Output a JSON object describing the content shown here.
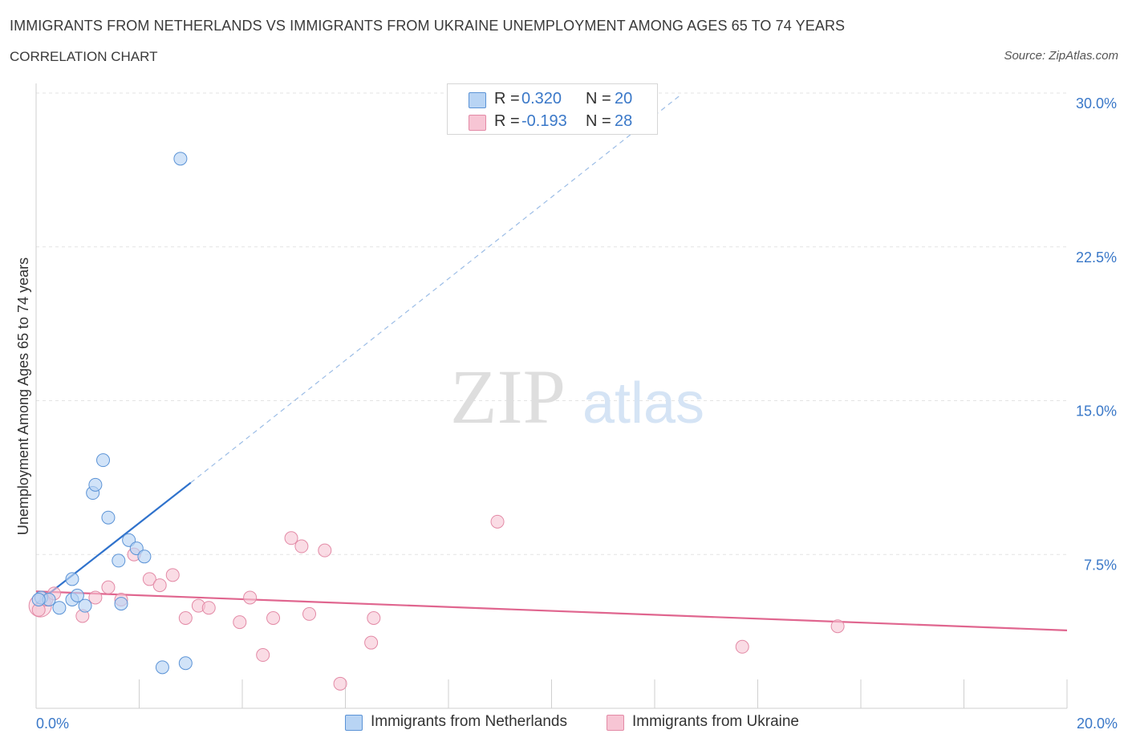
{
  "title": "IMMIGRANTS FROM NETHERLANDS VS IMMIGRANTS FROM UKRAINE UNEMPLOYMENT AMONG AGES 65 TO 74 YEARS",
  "subtitle": "CORRELATION CHART",
  "source": "Source: ZipAtlas.com",
  "watermark": {
    "zip": "ZIP",
    "atlas": "atlas"
  },
  "colors": {
    "netherlands_fill": "#b8d4f4",
    "netherlands_stroke": "#5b93d6",
    "netherlands_line": "#2f72cc",
    "ukraine_fill": "#f7c5d4",
    "ukraine_stroke": "#e38aa6",
    "ukraine_line": "#e0668f",
    "grid": "#e3e3e3",
    "tick_label": "#3a78c8"
  },
  "legend": {
    "r_label": "R =",
    "n_label": "N =",
    "rows": [
      {
        "series": "netherlands",
        "r": "0.320",
        "n": "20"
      },
      {
        "series": "ukraine",
        "r": "-0.193",
        "n": "28"
      }
    ]
  },
  "chart_data": {
    "type": "scatter",
    "title": "IMMIGRANTS FROM NETHERLANDS VS IMMIGRANTS FROM UKRAINE UNEMPLOYMENT AMONG AGES 65 TO 74 YEARS",
    "subtitle": "CORRELATION CHART",
    "xlabel": "",
    "ylabel": "Unemployment Among Ages 65 to 74 years",
    "xlim": [
      0,
      20
    ],
    "ylim": [
      0,
      30
    ],
    "x_tick_labels": [
      "0.0%",
      "20.0%"
    ],
    "y_ticks": [
      7.5,
      15.0,
      22.5,
      30.0
    ],
    "y_tick_labels": [
      "7.5%",
      "15.0%",
      "22.5%",
      "30.0%"
    ],
    "grid": true,
    "legend_position": "top-center",
    "series": [
      {
        "name": "Immigrants from Netherlands",
        "key": "netherlands",
        "r": 0.32,
        "n": 20,
        "points": [
          {
            "x": 0.1,
            "y": 5.4
          },
          {
            "x": 0.25,
            "y": 5.3
          },
          {
            "x": 0.45,
            "y": 4.9
          },
          {
            "x": 0.7,
            "y": 5.3
          },
          {
            "x": 0.7,
            "y": 6.3
          },
          {
            "x": 0.8,
            "y": 5.5
          },
          {
            "x": 0.95,
            "y": 5.0
          },
          {
            "x": 1.1,
            "y": 10.5
          },
          {
            "x": 1.15,
            "y": 10.9
          },
          {
            "x": 1.3,
            "y": 12.1
          },
          {
            "x": 1.4,
            "y": 9.3
          },
          {
            "x": 1.6,
            "y": 7.2
          },
          {
            "x": 1.65,
            "y": 5.1
          },
          {
            "x": 1.8,
            "y": 8.2
          },
          {
            "x": 1.95,
            "y": 7.8
          },
          {
            "x": 2.1,
            "y": 7.4
          },
          {
            "x": 2.45,
            "y": 2.0
          },
          {
            "x": 2.8,
            "y": 26.8
          },
          {
            "x": 2.9,
            "y": 2.2
          },
          {
            "x": 0.05,
            "y": 5.3
          }
        ],
        "trend": {
          "x0": 0.0,
          "y0": 5.1,
          "x1": 3.0,
          "y1": 11.0
        },
        "trend_extension": {
          "x0": 3.0,
          "y0": 11.0,
          "x1": 12.5,
          "y1": 29.9
        }
      },
      {
        "name": "Immigrants from Ukraine",
        "key": "ukraine",
        "r": -0.193,
        "n": 28,
        "points": [
          {
            "x": 0.05,
            "y": 4.8
          },
          {
            "x": 0.2,
            "y": 5.3
          },
          {
            "x": 0.35,
            "y": 5.6
          },
          {
            "x": 0.9,
            "y": 4.5
          },
          {
            "x": 1.15,
            "y": 5.4
          },
          {
            "x": 1.4,
            "y": 5.9
          },
          {
            "x": 1.65,
            "y": 5.3
          },
          {
            "x": 1.9,
            "y": 7.5
          },
          {
            "x": 2.2,
            "y": 6.3
          },
          {
            "x": 2.4,
            "y": 6.0
          },
          {
            "x": 2.65,
            "y": 6.5
          },
          {
            "x": 2.9,
            "y": 4.4
          },
          {
            "x": 3.15,
            "y": 5.0
          },
          {
            "x": 3.35,
            "y": 4.9
          },
          {
            "x": 3.95,
            "y": 4.2
          },
          {
            "x": 4.15,
            "y": 5.4
          },
          {
            "x": 4.4,
            "y": 2.6
          },
          {
            "x": 4.6,
            "y": 4.4
          },
          {
            "x": 4.95,
            "y": 8.3
          },
          {
            "x": 5.15,
            "y": 7.9
          },
          {
            "x": 5.3,
            "y": 4.6
          },
          {
            "x": 5.6,
            "y": 7.7
          },
          {
            "x": 5.9,
            "y": 1.2
          },
          {
            "x": 6.5,
            "y": 3.2
          },
          {
            "x": 6.55,
            "y": 4.4
          },
          {
            "x": 8.95,
            "y": 9.1
          },
          {
            "x": 13.7,
            "y": 3.0
          },
          {
            "x": 15.55,
            "y": 4.0
          }
        ],
        "trend": {
          "x0": 0.0,
          "y0": 5.7,
          "x1": 20.0,
          "y1": 3.8
        }
      }
    ]
  },
  "bottom_legend": [
    {
      "series": "netherlands",
      "label": "Immigrants from Netherlands"
    },
    {
      "series": "ukraine",
      "label": "Immigrants from Ukraine"
    }
  ]
}
